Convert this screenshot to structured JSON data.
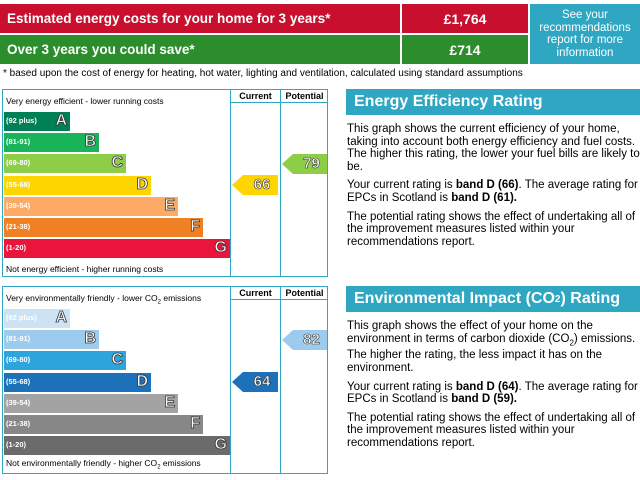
{
  "costs_banner": {
    "estimated_label": "Estimated energy costs for your home for 3 years*",
    "estimated_value": "£1,764",
    "save_label": "Over 3 years you could save*",
    "save_value": "£714",
    "recommendations_link": "See your recommendations report for more information",
    "footnote": "* based upon the cost of energy for heating, hot water, lighting and ventilation, calculated using standard assumptions",
    "colors": {
      "cost_red": "#c8102e",
      "save_green": "#2b8d2b",
      "accent_blue": "#2fa7c2"
    }
  },
  "energy_chart": {
    "top_caption": "Very energy efficient - lower running costs",
    "bottom_caption": "Not energy efficient - higher running costs",
    "col_current": "Current",
    "col_potential": "Potential",
    "bands": [
      {
        "range": "(92 plus)",
        "letter": "A",
        "color": "#008054",
        "fraction": 0.29
      },
      {
        "range": "(81-91)",
        "letter": "B",
        "color": "#19b459",
        "fraction": 0.42
      },
      {
        "range": "(69-80)",
        "letter": "C",
        "color": "#8dce46",
        "fraction": 0.54
      },
      {
        "range": "(55-68)",
        "letter": "D",
        "color": "#ffd500",
        "fraction": 0.65
      },
      {
        "range": "(39-54)",
        "letter": "E",
        "color": "#fcaa65",
        "fraction": 0.77
      },
      {
        "range": "(21-38)",
        "letter": "F",
        "color": "#ef8023",
        "fraction": 0.88
      },
      {
        "range": "(1-20)",
        "letter": "G",
        "color": "#e9153b",
        "fraction": 1.0
      }
    ],
    "current": {
      "value": "66",
      "band_index": 3,
      "color": "#ffd500"
    },
    "potential": {
      "value": "79",
      "band_index": 2,
      "color": "#8dce46"
    }
  },
  "impact_chart": {
    "top_caption_pre": "Very environmentally friendly - lower CO",
    "top_caption_sub": "2",
    "top_caption_post": " emissions",
    "bottom_caption_pre": "Not environmentally friendly - higher CO",
    "bottom_caption_sub": "2",
    "bottom_caption_post": " emissions",
    "col_current": "Current",
    "col_potential": "Potential",
    "bands": [
      {
        "range": "(92 plus)",
        "letter": "A",
        "color": "#cde3f4",
        "fraction": 0.29
      },
      {
        "range": "(81-91)",
        "letter": "B",
        "color": "#9ccbee",
        "fraction": 0.42
      },
      {
        "range": "(69-80)",
        "letter": "C",
        "color": "#2ea4dd",
        "fraction": 0.54
      },
      {
        "range": "(55-68)",
        "letter": "D",
        "color": "#1c71b8",
        "fraction": 0.65
      },
      {
        "range": "(39-54)",
        "letter": "E",
        "color": "#a3a3a3",
        "fraction": 0.77
      },
      {
        "range": "(21-38)",
        "letter": "F",
        "color": "#878787",
        "fraction": 0.88
      },
      {
        "range": "(1-20)",
        "letter": "G",
        "color": "#6b6b6b",
        "fraction": 1.0
      }
    ],
    "current": {
      "value": "64",
      "band_index": 3,
      "color": "#1c71b8"
    },
    "potential": {
      "value": "82",
      "band_index": 1,
      "color": "#9ccbee"
    }
  },
  "ee_panel": {
    "title": "Energy Efficiency Rating",
    "para1": "This graph shows the current efficiency of your home, taking into account both energy efficiency and fuel costs. The higher this rating, the lower your fuel bills are likely to be.",
    "para2_pre": "Your current rating is ",
    "para2_band": "band D (66)",
    "para2_mid": ". The average rating for EPCs in Scotland is ",
    "para2_avg": "band D (61).",
    "para3": "The potential rating shows the effect of undertaking all of the improvement measures listed within your recommendations report."
  },
  "ei_panel": {
    "title_pre": "Environmental Impact (CO",
    "title_sub": "2",
    "title_post": ") Rating",
    "para1_pre": "This graph shows the effect of your home on the environment in terms of carbon dioxide (CO",
    "para1_sub": "2",
    "para1_post": ") emissions. The higher the rating, the less impact it has on the environment.",
    "para2_pre": "Your current rating is ",
    "para2_band": "band D (64)",
    "para2_mid": ". The average rating for EPCs in Scotland is ",
    "para2_avg": "band D (59).",
    "para3": "The potential rating shows the effect of undertaking all of the improvement measures listed within your recommendations report."
  }
}
